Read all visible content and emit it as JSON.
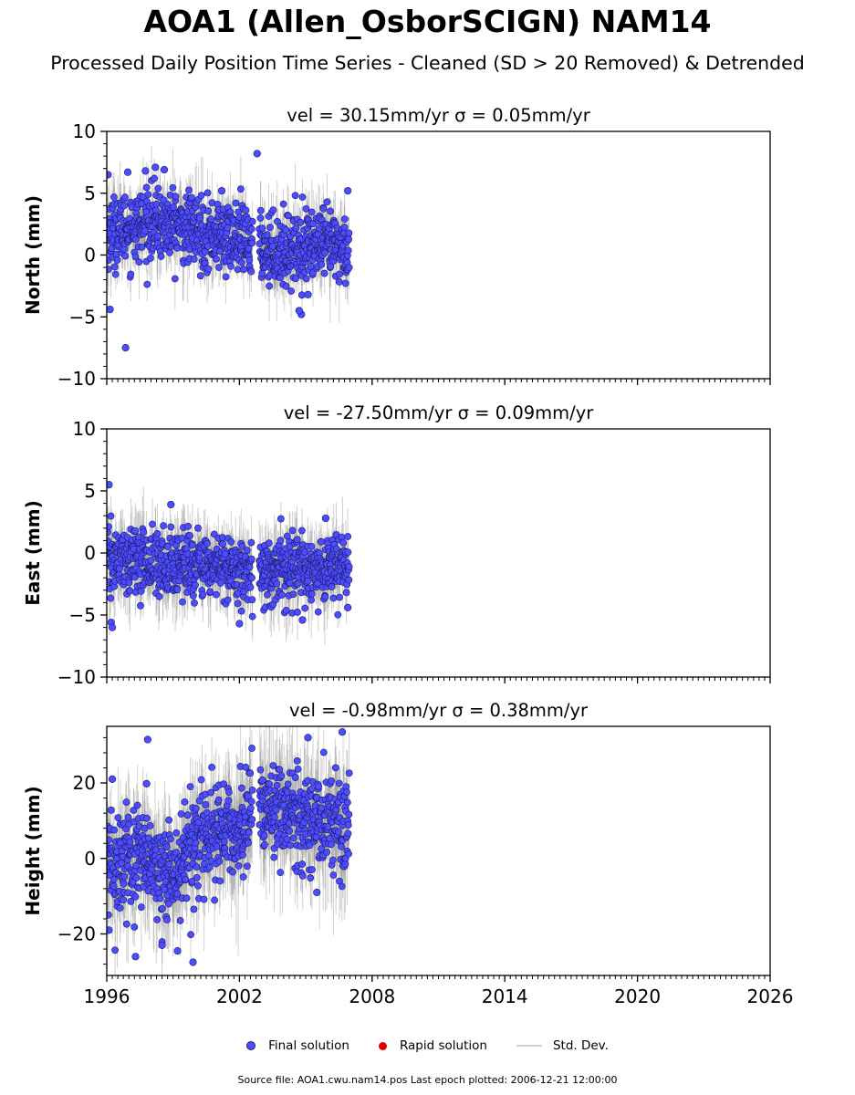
{
  "title": "AOA1 (Allen_OsborSCIGN) NAM14",
  "subtitle": "Processed Daily Position Time Series - Cleaned (SD > 20 Removed) & Detrended",
  "legend": {
    "final": "Final solution",
    "rapid": "Rapid solution",
    "stddev": "Std. Dev."
  },
  "footer": "Source file: AOA1.cwu.nam14.pos  Last epoch plotted: 2006-12-21 12:00:00",
  "colors": {
    "final_fill": "#4d4dff",
    "final_edge": "#1a1a66",
    "rapid": "#e00000",
    "stddev": "#bdbdbd"
  },
  "chart_data": [
    {
      "type": "scatter",
      "title": "vel = 30.15mm/yr   σ = 0.05mm/yr",
      "ylabel": "North (mm)",
      "xlim": [
        1996,
        2026
      ],
      "ylim": [
        -10,
        10
      ],
      "yticks": [
        -10,
        -5,
        0,
        5,
        10
      ],
      "ytick_labels": [
        "−10",
        "−5",
        "0",
        "5",
        "10"
      ],
      "xticks": [
        1996,
        2002,
        2008,
        2014,
        2020,
        2026
      ],
      "xtick_labels": [],
      "data_span": [
        1996.0,
        2006.97
      ],
      "segments": [
        {
          "x": [
            1996.0,
            1997.0,
            1998.0,
            1999.0,
            2000.0,
            2001.0,
            2002.0,
            2002.6
          ],
          "y": [
            1.8,
            2.2,
            2.6,
            2.4,
            2.0,
            1.6,
            1.2,
            0.9
          ]
        },
        {
          "x": [
            2002.9,
            2004.0,
            2005.0,
            2006.0,
            2006.97
          ],
          "y": [
            0.6,
            0.3,
            0.9,
            0.7,
            0.4
          ]
        }
      ],
      "scatter_sd": 1.4,
      "errbar_sd": 1.2,
      "highlights": [
        {
          "x": 1996.05,
          "y": 6.5
        },
        {
          "x": 1996.15,
          "y": -4.4
        },
        {
          "x": 1996.85,
          "y": -7.5
        },
        {
          "x": 1996.95,
          "y": 6.7
        },
        {
          "x": 1997.75,
          "y": 6.8
        },
        {
          "x": 1998.2,
          "y": 7.1
        },
        {
          "x": 1998.6,
          "y": 6.9
        },
        {
          "x": 2001.2,
          "y": 5.2
        },
        {
          "x": 2002.8,
          "y": 8.2
        },
        {
          "x": 2004.8,
          "y": -4.8
        },
        {
          "x": 2005.1,
          "y": -3.2
        },
        {
          "x": 2006.9,
          "y": 5.2
        },
        {
          "x": 2004.7,
          "y": -4.5
        }
      ]
    },
    {
      "type": "scatter",
      "title": "vel = -27.50mm/yr   σ = 0.09mm/yr",
      "ylabel": "East (mm)",
      "xlim": [
        1996,
        2026
      ],
      "ylim": [
        -10,
        10
      ],
      "yticks": [
        -10,
        -5,
        0,
        5,
        10
      ],
      "ytick_labels": [
        "−10",
        "−5",
        "0",
        "5",
        "10"
      ],
      "xticks": [
        1996,
        2002,
        2008,
        2014,
        2020,
        2026
      ],
      "xtick_labels": [],
      "data_span": [
        1996.0,
        2006.97
      ],
      "segments": [
        {
          "x": [
            1996.0,
            1997.0,
            1998.0,
            1999.0,
            2000.0,
            2001.0,
            2002.0,
            2002.6
          ],
          "y": [
            -0.8,
            -0.6,
            -0.7,
            -0.9,
            -1.0,
            -1.1,
            -1.3,
            -1.4
          ]
        },
        {
          "x": [
            2002.9,
            2004.0,
            2005.0,
            2006.0,
            2006.97
          ],
          "y": [
            -1.6,
            -1.5,
            -1.3,
            -1.2,
            -1.2
          ]
        }
      ],
      "scatter_sd": 1.3,
      "errbar_sd": 1.3,
      "highlights": [
        {
          "x": 1996.1,
          "y": 5.5
        },
        {
          "x": 1996.2,
          "y": -5.6
        },
        {
          "x": 1996.25,
          "y": -6.0
        },
        {
          "x": 1998.9,
          "y": 3.9
        },
        {
          "x": 2002.0,
          "y": -5.7
        },
        {
          "x": 2004.85,
          "y": -5.4
        },
        {
          "x": 2005.9,
          "y": 2.8
        },
        {
          "x": 2006.9,
          "y": -4.4
        }
      ]
    },
    {
      "type": "scatter",
      "title": "vel = -0.98mm/yr   σ = 0.38mm/yr",
      "ylabel": "Height (mm)",
      "xlim": [
        1996,
        2026
      ],
      "ylim": [
        -31,
        35
      ],
      "yticks": [
        -20,
        0,
        20
      ],
      "ytick_labels": [
        "−20",
        "0",
        "20"
      ],
      "xticks": [
        1996,
        2002,
        2008,
        2014,
        2020,
        2026
      ],
      "xtick_labels": [
        "1996",
        "2002",
        "2008",
        "2014",
        "2020",
        "2026"
      ],
      "data_span": [
        1996.0,
        2006.97
      ],
      "segments": [
        {
          "x": [
            1996.0,
            1997.0,
            1998.0,
            1998.8,
            1999.5,
            2000.0,
            2001.0,
            2002.0,
            2002.6
          ],
          "y": [
            -2.0,
            0.0,
            -2.0,
            -6.0,
            0.0,
            3.0,
            6.0,
            8.0,
            12.0
          ]
        },
        {
          "x": [
            2002.9,
            2004.0,
            2005.0,
            2006.0,
            2006.97
          ],
          "y": [
            14.0,
            12.0,
            10.0,
            11.0,
            10.0
          ]
        }
      ],
      "scatter_sd": 6.5,
      "errbar_sd": 6.5,
      "highlights": [
        {
          "x": 1996.25,
          "y": 21.0
        },
        {
          "x": 1997.3,
          "y": -26.0
        },
        {
          "x": 1997.85,
          "y": 31.5
        },
        {
          "x": 1997.8,
          "y": 19.8
        },
        {
          "x": 1998.5,
          "y": -23.0
        },
        {
          "x": 1999.2,
          "y": -24.5
        },
        {
          "x": 1999.9,
          "y": -27.5
        },
        {
          "x": 2005.1,
          "y": 32.0
        },
        {
          "x": 2006.65,
          "y": 33.5
        },
        {
          "x": 1996.1,
          "y": -19.0
        },
        {
          "x": 2005.5,
          "y": -9.0
        }
      ]
    }
  ]
}
